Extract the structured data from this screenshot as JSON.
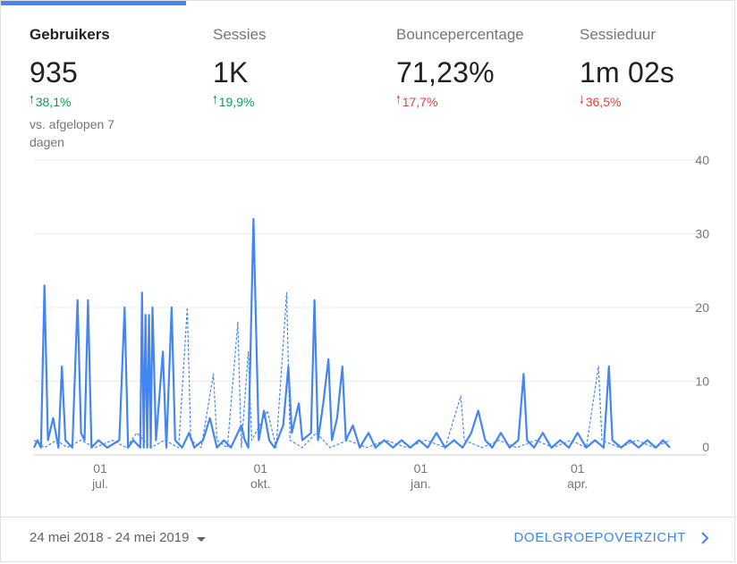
{
  "metrics": [
    {
      "label": "Gebruikers",
      "value": "935",
      "arrow": "🠑",
      "change": "38,1%",
      "compare": "vs. afgelopen 7 dagen"
    },
    {
      "label": "Sessies",
      "value": "1K",
      "arrow": "🠑",
      "change": "19,9%"
    },
    {
      "label": "Bouncepercentage",
      "value": "71,23%",
      "arrow": "🠑",
      "change": "17,7%"
    },
    {
      "label": "Sessieduur",
      "value": "1m 02s",
      "arrow": "🠓",
      "change": "36,5%"
    }
  ],
  "footer": {
    "date_range": "24 mei 2018 - 24 mei 2019",
    "overview_label": "DOELGROEPOVERZICHT"
  },
  "colors": {
    "accent": "#4285f4",
    "positive": "#0f9d58",
    "negative": "#db4437"
  },
  "chart_data": {
    "type": "line",
    "title": "",
    "xlabel": "",
    "ylabel": "",
    "ylim": [
      0,
      40
    ],
    "yticks": [
      0,
      10,
      20,
      30,
      40
    ],
    "y_axis_side": "right",
    "grid": true,
    "x_ticks": [
      {
        "day": "01",
        "month": "jul.",
        "date": "2018-07-01"
      },
      {
        "day": "01",
        "month": "okt.",
        "date": "2018-10-01"
      },
      {
        "day": "01",
        "month": "jan.",
        "date": "2019-01-01"
      },
      {
        "day": "01",
        "month": "apr.",
        "date": "2019-04-01"
      }
    ],
    "x_range": [
      "2018-05-24",
      "2019-05-24"
    ],
    "series": [
      {
        "style": "solid",
        "points": [
          [
            "2018-05-24",
            1
          ],
          [
            "2018-05-26",
            2
          ],
          [
            "2018-05-28",
            1
          ],
          [
            "2018-05-30",
            23
          ],
          [
            "2018-06-01",
            2
          ],
          [
            "2018-06-04",
            5
          ],
          [
            "2018-06-07",
            1
          ],
          [
            "2018-06-09",
            12
          ],
          [
            "2018-06-11",
            2
          ],
          [
            "2018-06-15",
            1
          ],
          [
            "2018-06-18",
            21
          ],
          [
            "2018-06-20",
            3
          ],
          [
            "2018-06-22",
            2
          ],
          [
            "2018-06-24",
            21
          ],
          [
            "2018-06-26",
            1
          ],
          [
            "2018-06-30",
            2
          ],
          [
            "2018-07-05",
            1
          ],
          [
            "2018-07-12",
            2
          ],
          [
            "2018-07-15",
            20
          ],
          [
            "2018-07-17",
            1
          ],
          [
            "2018-07-20",
            2
          ],
          [
            "2018-07-24",
            1
          ],
          [
            "2018-07-25",
            22
          ],
          [
            "2018-07-26",
            1
          ],
          [
            "2018-07-27",
            19
          ],
          [
            "2018-07-28",
            1
          ],
          [
            "2018-07-29",
            19
          ],
          [
            "2018-07-30",
            1
          ],
          [
            "2018-07-31",
            20
          ],
          [
            "2018-08-02",
            2
          ],
          [
            "2018-08-06",
            14
          ],
          [
            "2018-08-08",
            1
          ],
          [
            "2018-08-11",
            20
          ],
          [
            "2018-08-13",
            2
          ],
          [
            "2018-08-17",
            1
          ],
          [
            "2018-08-21",
            3
          ],
          [
            "2018-08-24",
            1
          ],
          [
            "2018-08-29",
            2
          ],
          [
            "2018-09-02",
            5
          ],
          [
            "2018-09-06",
            1
          ],
          [
            "2018-09-10",
            2
          ],
          [
            "2018-09-14",
            1
          ],
          [
            "2018-09-20",
            4
          ],
          [
            "2018-09-22",
            2
          ],
          [
            "2018-09-24",
            1
          ],
          [
            "2018-09-27",
            32
          ],
          [
            "2018-09-30",
            2
          ],
          [
            "2018-10-03",
            6
          ],
          [
            "2018-10-06",
            2
          ],
          [
            "2018-10-09",
            1
          ],
          [
            "2018-10-14",
            4
          ],
          [
            "2018-10-17",
            12
          ],
          [
            "2018-10-19",
            3
          ],
          [
            "2018-10-23",
            7
          ],
          [
            "2018-10-25",
            2
          ],
          [
            "2018-10-30",
            3
          ],
          [
            "2018-11-01",
            21
          ],
          [
            "2018-11-03",
            2
          ],
          [
            "2018-11-06",
            7
          ],
          [
            "2018-11-09",
            13
          ],
          [
            "2018-11-11",
            2
          ],
          [
            "2018-11-14",
            5
          ],
          [
            "2018-11-17",
            12
          ],
          [
            "2018-11-19",
            2
          ],
          [
            "2018-11-23",
            4
          ],
          [
            "2018-11-27",
            1
          ],
          [
            "2018-12-02",
            3
          ],
          [
            "2018-12-06",
            1
          ],
          [
            "2018-12-11",
            2
          ],
          [
            "2018-12-16",
            1
          ],
          [
            "2018-12-21",
            2
          ],
          [
            "2018-12-26",
            1
          ],
          [
            "2018-12-31",
            2
          ],
          [
            "2019-01-05",
            1
          ],
          [
            "2019-01-10",
            3
          ],
          [
            "2019-01-15",
            1
          ],
          [
            "2019-01-20",
            2
          ],
          [
            "2019-01-25",
            1
          ],
          [
            "2019-01-30",
            3
          ],
          [
            "2019-02-03",
            6
          ],
          [
            "2019-02-07",
            2
          ],
          [
            "2019-02-11",
            1
          ],
          [
            "2019-02-16",
            3
          ],
          [
            "2019-02-21",
            1
          ],
          [
            "2019-02-26",
            2
          ],
          [
            "2019-03-01",
            11
          ],
          [
            "2019-03-03",
            2
          ],
          [
            "2019-03-07",
            1
          ],
          [
            "2019-03-12",
            3
          ],
          [
            "2019-03-17",
            1
          ],
          [
            "2019-03-22",
            2
          ],
          [
            "2019-03-27",
            1
          ],
          [
            "2019-04-01",
            3
          ],
          [
            "2019-04-06",
            1
          ],
          [
            "2019-04-11",
            2
          ],
          [
            "2019-04-16",
            1
          ],
          [
            "2019-04-19",
            12
          ],
          [
            "2019-04-21",
            2
          ],
          [
            "2019-04-26",
            1
          ],
          [
            "2019-05-01",
            2
          ],
          [
            "2019-05-06",
            1
          ],
          [
            "2019-05-11",
            2
          ],
          [
            "2019-05-16",
            1
          ],
          [
            "2019-05-20",
            2
          ],
          [
            "2019-05-24",
            1
          ]
        ]
      },
      {
        "style": "dashed",
        "points": [
          [
            "2018-05-24",
            2
          ],
          [
            "2018-05-30",
            1
          ],
          [
            "2018-06-06",
            2
          ],
          [
            "2018-06-12",
            1
          ],
          [
            "2018-06-20",
            2
          ],
          [
            "2018-06-28",
            1
          ],
          [
            "2018-07-08",
            2
          ],
          [
            "2018-07-16",
            1
          ],
          [
            "2018-07-22",
            3
          ],
          [
            "2018-07-30",
            1
          ],
          [
            "2018-08-07",
            2
          ],
          [
            "2018-08-15",
            1
          ],
          [
            "2018-08-20",
            20
          ],
          [
            "2018-08-22",
            2
          ],
          [
            "2018-08-28",
            1
          ],
          [
            "2018-09-04",
            11
          ],
          [
            "2018-09-06",
            2
          ],
          [
            "2018-09-12",
            1
          ],
          [
            "2018-09-18",
            18
          ],
          [
            "2018-09-20",
            1
          ],
          [
            "2018-09-24",
            14
          ],
          [
            "2018-09-26",
            2
          ],
          [
            "2018-10-05",
            6
          ],
          [
            "2018-10-10",
            1
          ],
          [
            "2018-10-16",
            22
          ],
          [
            "2018-10-18",
            2
          ],
          [
            "2018-10-25",
            1
          ],
          [
            "2018-11-02",
            3
          ],
          [
            "2018-11-10",
            1
          ],
          [
            "2018-11-20",
            2
          ],
          [
            "2018-12-01",
            1
          ],
          [
            "2018-12-12",
            2
          ],
          [
            "2018-12-24",
            1
          ],
          [
            "2019-01-04",
            2
          ],
          [
            "2019-01-15",
            1
          ],
          [
            "2019-01-24",
            8
          ],
          [
            "2019-01-26",
            2
          ],
          [
            "2019-02-05",
            1
          ],
          [
            "2019-02-15",
            2
          ],
          [
            "2019-02-25",
            1
          ],
          [
            "2019-03-08",
            2
          ],
          [
            "2019-03-18",
            1
          ],
          [
            "2019-03-28",
            2
          ],
          [
            "2019-04-06",
            1
          ],
          [
            "2019-04-13",
            12
          ],
          [
            "2019-04-15",
            2
          ],
          [
            "2019-04-25",
            1
          ],
          [
            "2019-05-05",
            2
          ],
          [
            "2019-05-15",
            1
          ],
          [
            "2019-05-24",
            2
          ]
        ]
      }
    ]
  }
}
